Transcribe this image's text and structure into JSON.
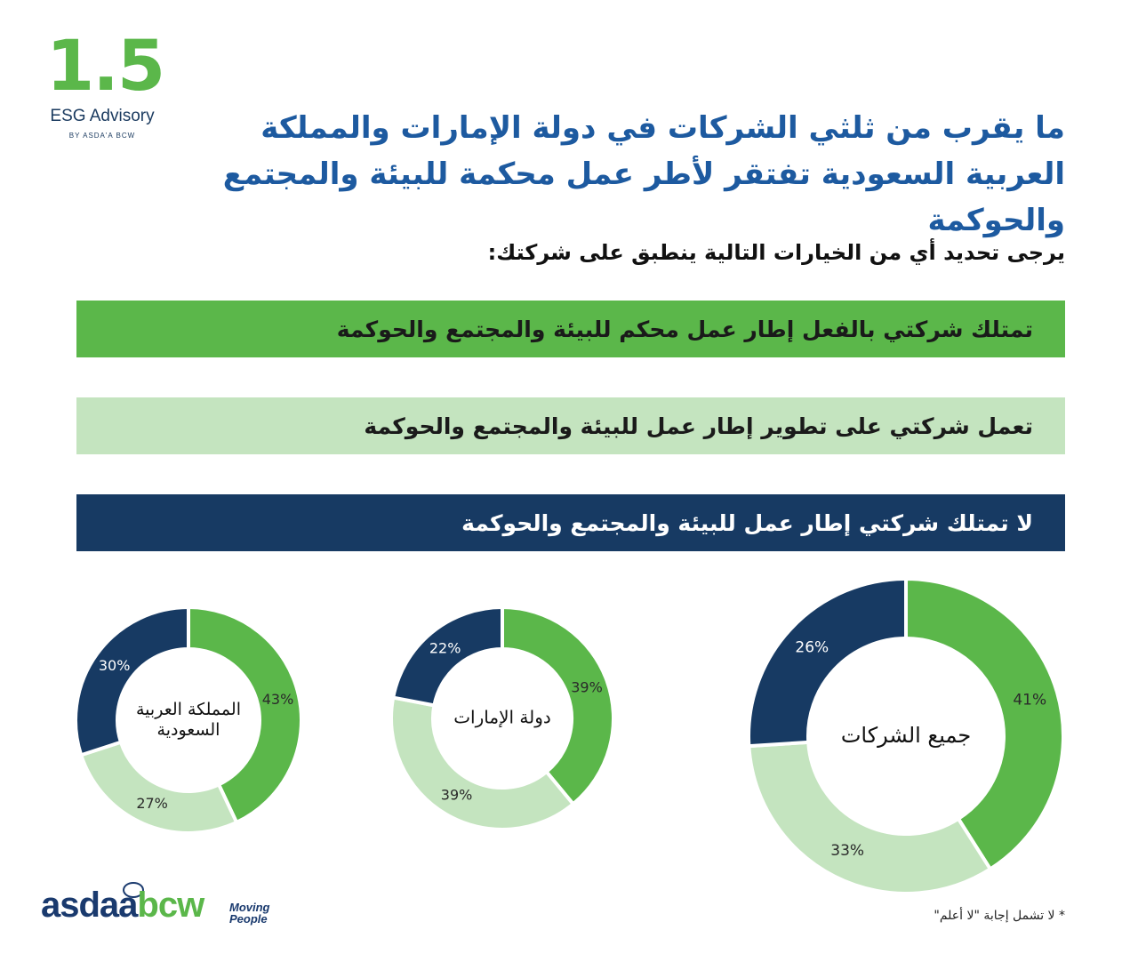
{
  "logo": {
    "number": "1.5",
    "title": "ESG Advisory",
    "byline": "BY ASDA'A BCW"
  },
  "headline": "ما يقرب من ثلثي الشركات في دولة الإمارات والمملكة العربية السعودية تفتقر لأطر عمل محكمة للبيئة والمجتمع والحوكمة",
  "question": "يرجى تحديد أي من الخيارات التالية ينطبق على شركتك:",
  "legend": [
    {
      "label": "تمتلك شركتي بالفعل إطار عمل محكم للبيئة والمجتمع والحوكمة",
      "color": "#5bb74a"
    },
    {
      "label": "تعمل شركتي على تطوير إطار عمل للبيئة والمجتمع والحوكمة",
      "color": "#c4e4bf"
    },
    {
      "label": "لا تمتلك شركتي إطار عمل للبيئة والمجتمع والحوكمة",
      "color": "#173a63"
    }
  ],
  "chart_data": [
    {
      "type": "pie",
      "donut": true,
      "title": "جميع الشركات",
      "categories": [
        "تمتلك إطار عمل محكم",
        "تعمل على تطوير إطار عمل",
        "لا تمتلك إطار عمل"
      ],
      "values": [
        41,
        33,
        26
      ],
      "labels": [
        "41%",
        "33%",
        "26%"
      ],
      "colors": [
        "#5bb74a",
        "#c4e4bf",
        "#173a63"
      ]
    },
    {
      "type": "pie",
      "donut": true,
      "title": "دولة الإمارات",
      "categories": [
        "تمتلك إطار عمل محكم",
        "تعمل على تطوير إطار عمل",
        "لا تمتلك إطار عمل"
      ],
      "values": [
        39,
        39,
        22
      ],
      "labels": [
        "39%",
        "39%",
        "22%"
      ],
      "colors": [
        "#5bb74a",
        "#c4e4bf",
        "#173a63"
      ]
    },
    {
      "type": "pie",
      "donut": true,
      "title": "المملكة العربية السعودية",
      "title_lines": [
        "المملكة العربية",
        "السعودية"
      ],
      "categories": [
        "تمتلك إطار عمل محكم",
        "تعمل على تطوير إطار عمل",
        "لا تمتلك إطار عمل"
      ],
      "values": [
        43,
        27,
        30
      ],
      "labels": [
        "43%",
        "27%",
        "30%"
      ],
      "colors": [
        "#5bb74a",
        "#c4e4bf",
        "#173a63"
      ]
    }
  ],
  "footer": {
    "brand_a": "asdaa",
    "brand_b": "bcw",
    "tagline_1": "Moving",
    "tagline_2": "People"
  },
  "footnote": "* لا تشمل إجابة \"لا أعلم\""
}
